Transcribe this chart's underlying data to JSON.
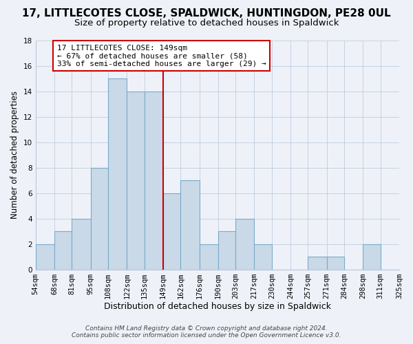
{
  "title": "17, LITTLECOTES CLOSE, SPALDWICK, HUNTINGDON, PE28 0UL",
  "subtitle": "Size of property relative to detached houses in Spaldwick",
  "xlabel": "Distribution of detached houses by size in Spaldwick",
  "ylabel": "Number of detached properties",
  "bin_edges": [
    54,
    68,
    81,
    95,
    108,
    122,
    135,
    149,
    162,
    176,
    190,
    203,
    217,
    230,
    244,
    257,
    271,
    284,
    298,
    311,
    325
  ],
  "bin_labels": [
    "54sqm",
    "68sqm",
    "81sqm",
    "95sqm",
    "108sqm",
    "122sqm",
    "135sqm",
    "149sqm",
    "162sqm",
    "176sqm",
    "190sqm",
    "203sqm",
    "217sqm",
    "230sqm",
    "244sqm",
    "257sqm",
    "271sqm",
    "284sqm",
    "298sqm",
    "311sqm",
    "325sqm"
  ],
  "counts": [
    2,
    3,
    4,
    8,
    15,
    14,
    14,
    6,
    7,
    2,
    3,
    4,
    2,
    0,
    0,
    1,
    1,
    0,
    2,
    0
  ],
  "bar_color": "#c9d9e8",
  "bar_edge_color": "#7aaac8",
  "vline_x": 149,
  "vline_color": "#cc0000",
  "box_text_line1": "17 LITTLECOTES CLOSE: 149sqm",
  "box_text_line2": "← 67% of detached houses are smaller (58)",
  "box_text_line3": "33% of semi-detached houses are larger (29) →",
  "box_color": "#ffffff",
  "box_edge_color": "#cc0000",
  "ylim": [
    0,
    18
  ],
  "yticks": [
    0,
    2,
    4,
    6,
    8,
    10,
    12,
    14,
    16,
    18
  ],
  "bg_color": "#eef2f8",
  "footer_line1": "Contains HM Land Registry data © Crown copyright and database right 2024.",
  "footer_line2": "Contains public sector information licensed under the Open Government Licence v3.0.",
  "title_fontsize": 11,
  "subtitle_fontsize": 9.5,
  "xlabel_fontsize": 9,
  "ylabel_fontsize": 8.5,
  "tick_fontsize": 7.5,
  "footer_fontsize": 6.5,
  "annotation_fontsize": 8
}
